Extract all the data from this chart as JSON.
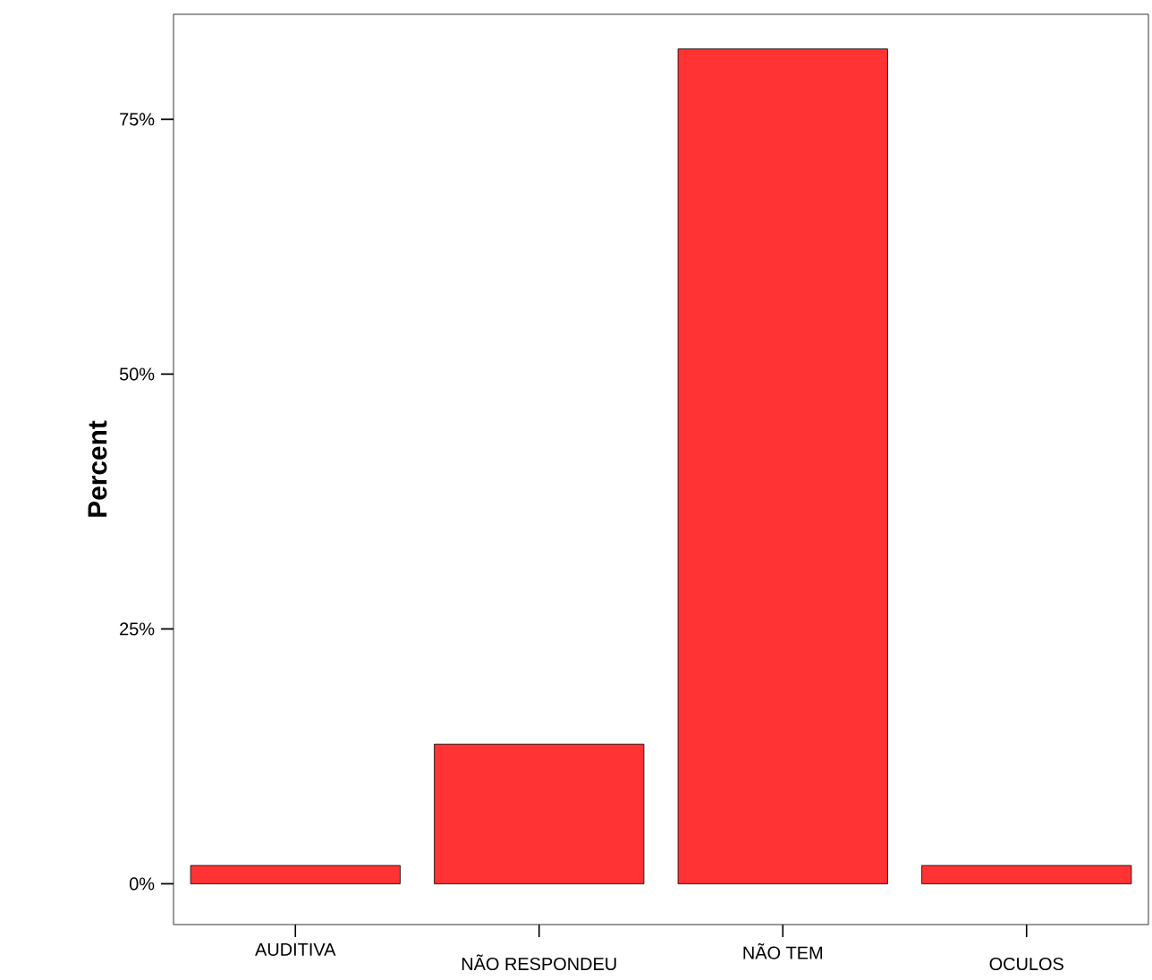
{
  "chart_data": {
    "type": "bar",
    "ylabel": "Percent",
    "categories": [
      "AUDITIVA",
      "NÃO RESPONDEU",
      "NÃO TEM",
      "OCULOS"
    ],
    "values": [
      1.8,
      13.7,
      81.9,
      1.8
    ],
    "color": "#ff3333",
    "ylim": [
      -4,
      85.3
    ],
    "yticks": [
      {
        "value": 0,
        "label": "0%"
      },
      {
        "value": 25,
        "label": "25%"
      },
      {
        "value": 50,
        "label": "50%"
      },
      {
        "value": 75,
        "label": "75%"
      }
    ],
    "grid": false
  }
}
